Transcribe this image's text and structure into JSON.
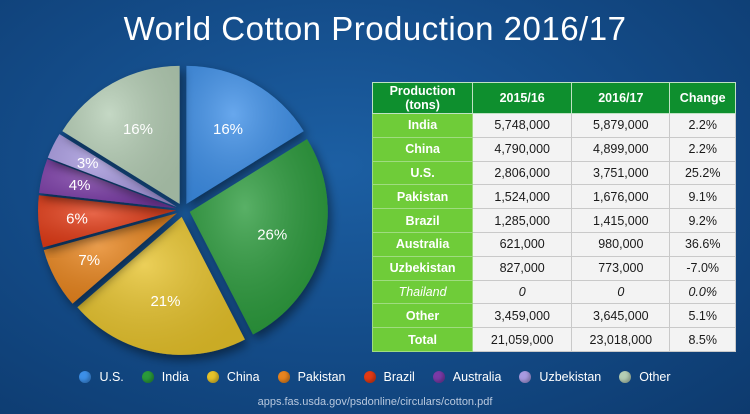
{
  "chart_data": [
    {
      "type": "pie",
      "title": "World Cotton Production 2016/17",
      "slices": [
        {
          "name": "U.S.",
          "value": 16,
          "label": "16%",
          "color": "#3c8fe8"
        },
        {
          "name": "India",
          "value": 26,
          "label": "26%",
          "color": "#2a9a3a"
        },
        {
          "name": "China",
          "value": 21,
          "label": "21%",
          "color": "#e6c22a"
        },
        {
          "name": "Pakistan",
          "value": 7,
          "label": "7%",
          "color": "#e8841f"
        },
        {
          "name": "Brazil",
          "value": 6,
          "label": "6%",
          "color": "#e23a14"
        },
        {
          "name": "Australia",
          "value": 4,
          "label": "4%",
          "color": "#7a3aa6"
        },
        {
          "name": "Uzbekistan",
          "value": 3,
          "label": "3%",
          "color": "#a89ae0"
        },
        {
          "name": "Other",
          "value": 16,
          "label": "16%",
          "color": "#b4cdb4"
        }
      ]
    },
    {
      "type": "table",
      "columns": [
        "Production\n(tons)",
        "2015/16",
        "2016/17",
        "Change"
      ],
      "rows": [
        {
          "country": "India",
          "v1": "5,748,000",
          "v2": "5,879,000",
          "change": "2.2%",
          "italic": false
        },
        {
          "country": "China",
          "v1": "4,790,000",
          "v2": "4,899,000",
          "change": "2.2%",
          "italic": false
        },
        {
          "country": "U.S.",
          "v1": "2,806,000",
          "v2": "3,751,000",
          "change": "25.2%",
          "italic": false
        },
        {
          "country": "Pakistan",
          "v1": "1,524,000",
          "v2": "1,676,000",
          "change": "9.1%",
          "italic": false
        },
        {
          "country": "Brazil",
          "v1": "1,285,000",
          "v2": "1,415,000",
          "change": "9.2%",
          "italic": false
        },
        {
          "country": "Australia",
          "v1": "621,000",
          "v2": "980,000",
          "change": "36.6%",
          "italic": false
        },
        {
          "country": "Uzbekistan",
          "v1": "827,000",
          "v2": "773,000",
          "change": "-7.0%",
          "italic": false
        },
        {
          "country": "Thailand",
          "v1": "0",
          "v2": "0",
          "change": "0.0%",
          "italic": true
        },
        {
          "country": "Other",
          "v1": "3,459,000",
          "v2": "3,645,000",
          "change": "5.1%",
          "italic": false
        },
        {
          "country": "Total",
          "v1": "21,059,000",
          "v2": "23,018,000",
          "change": "8.5%",
          "italic": false
        }
      ]
    }
  ],
  "source": "apps.fas.usda.gov/psdonline/circulars/cotton.pdf"
}
